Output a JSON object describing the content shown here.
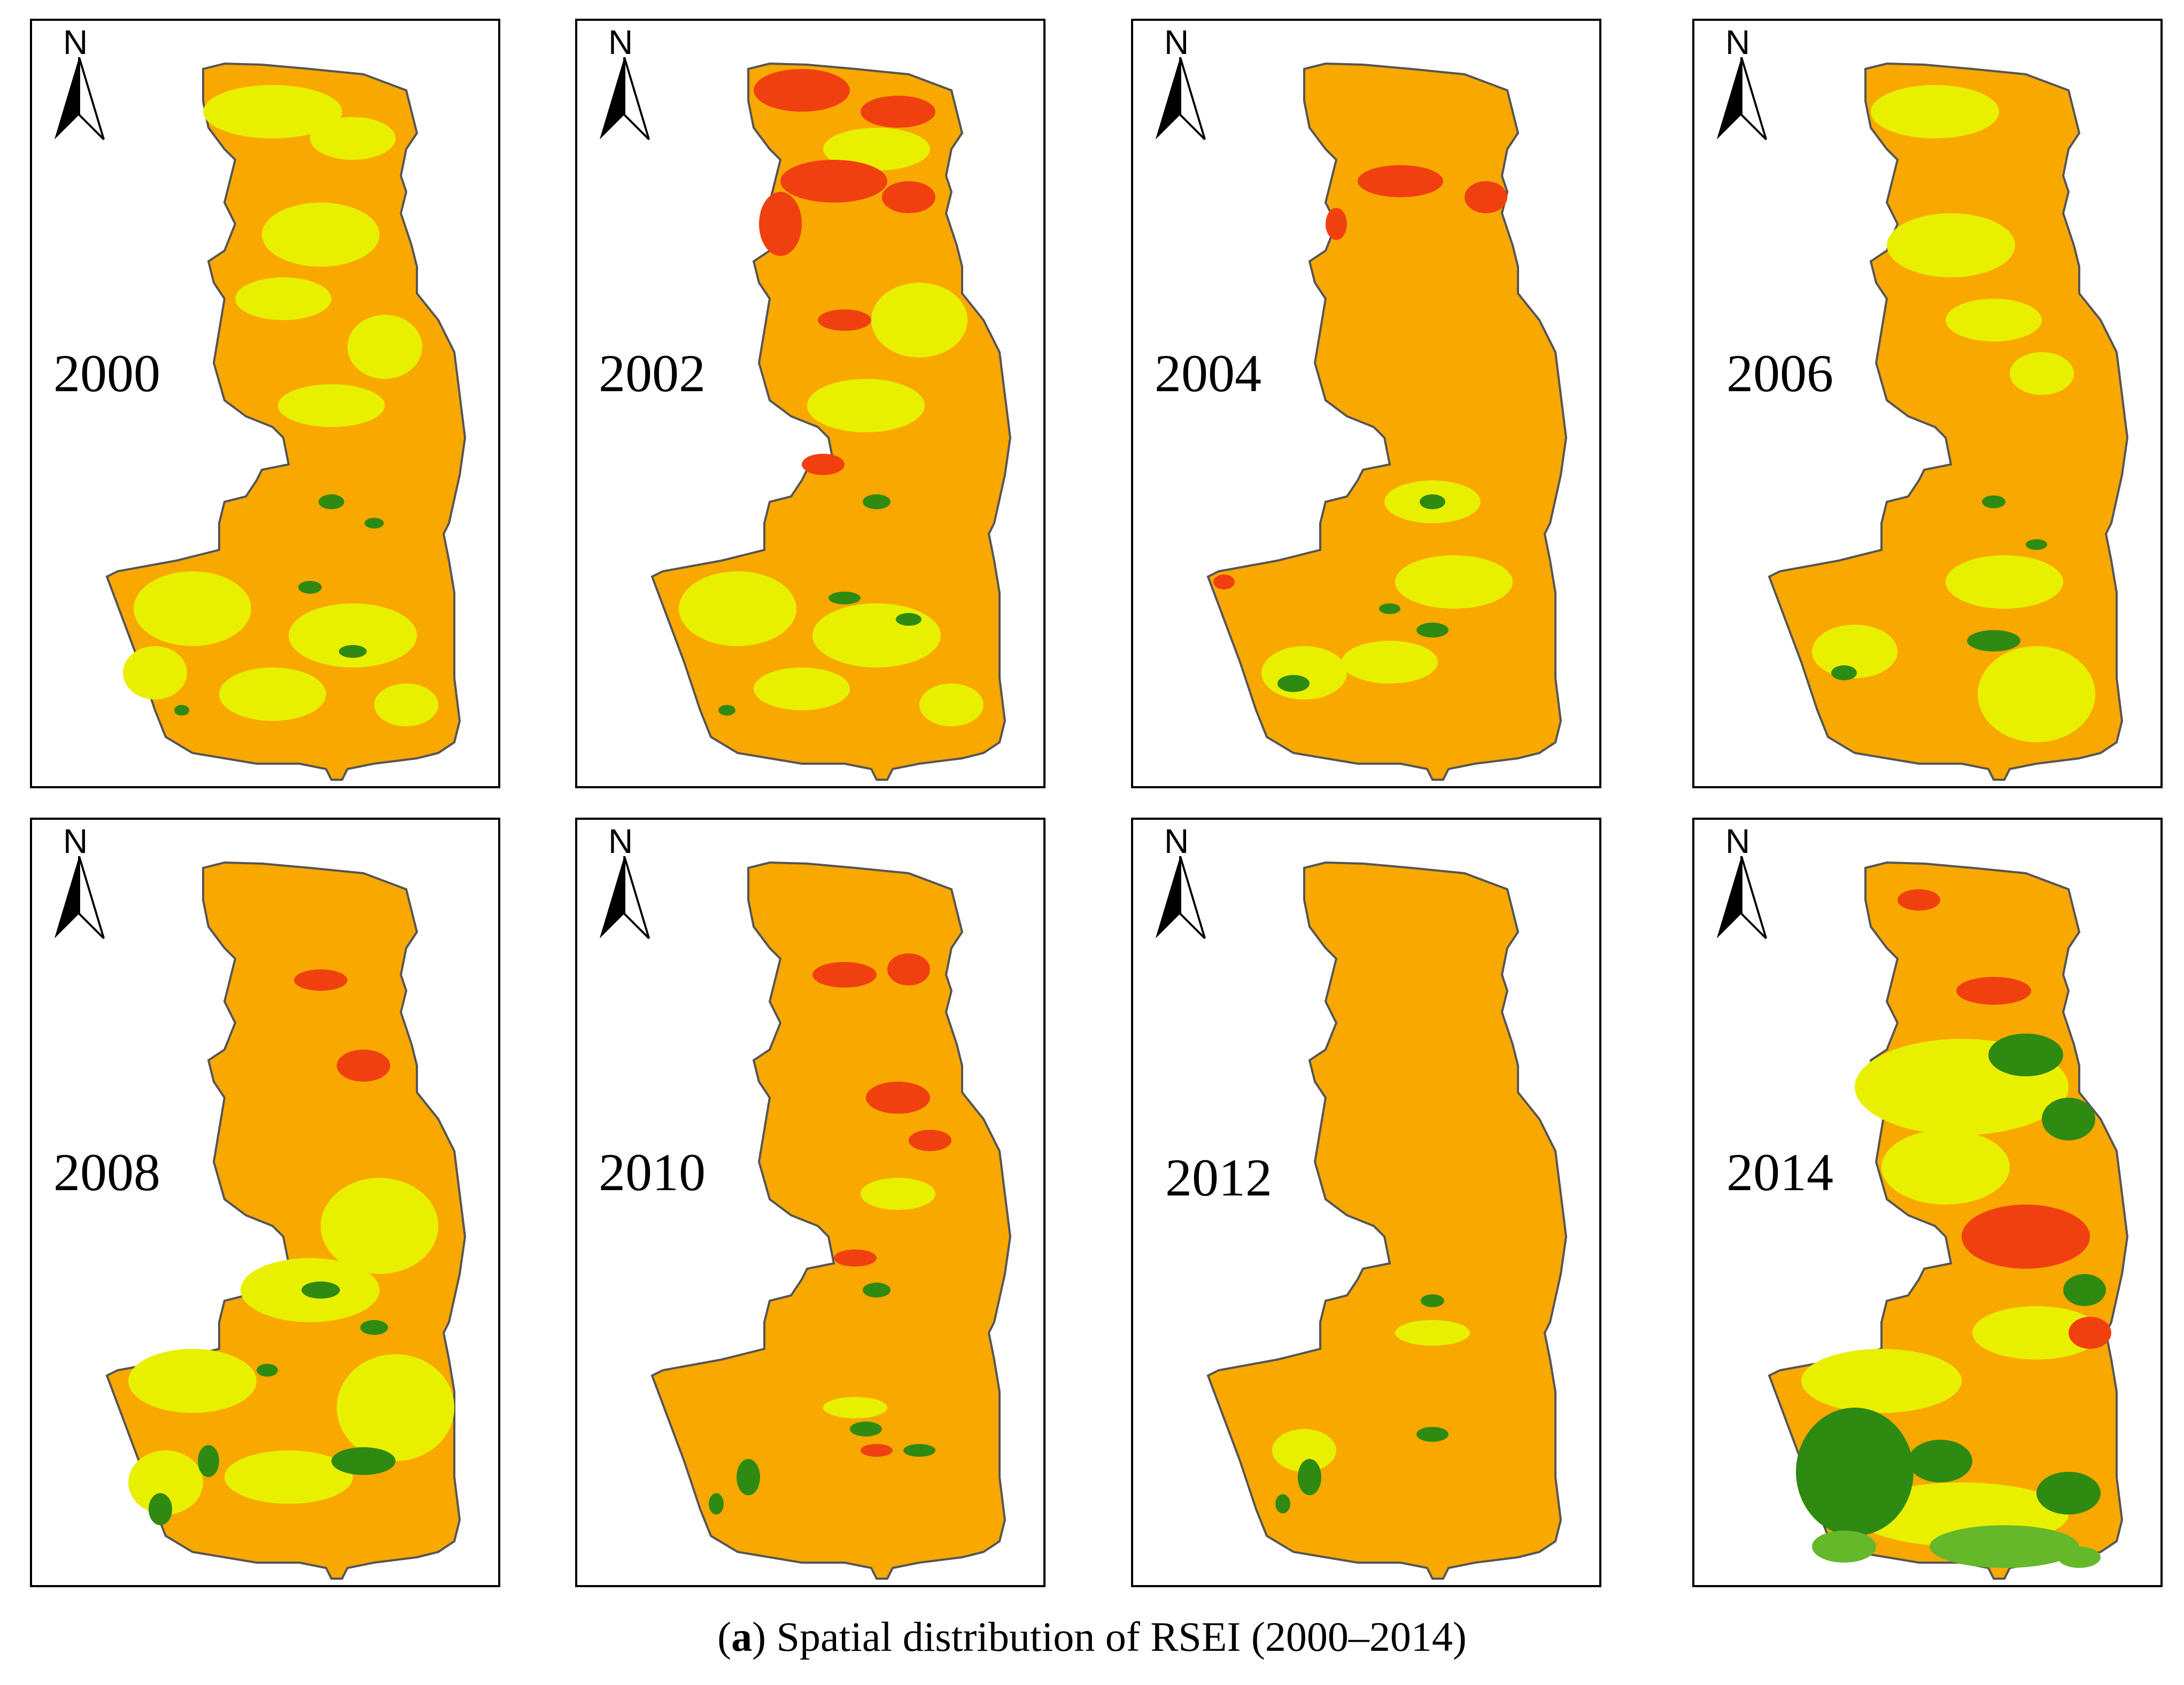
{
  "figure": {
    "caption_prefix": "(",
    "caption_letter": "a",
    "caption_text": ") Spatial distribution of RSEI (2000–2014)"
  },
  "north_label": "N",
  "colors": {
    "base": "#F9A800",
    "light": "#E8F000",
    "poor": "#F04010",
    "good": "#2E8A10",
    "excellent": "#65B82A"
  },
  "panels": [
    {
      "year": "2000",
      "dominant": "orange-yellow mix"
    },
    {
      "year": "2002",
      "dominant": "orange with red north"
    },
    {
      "year": "2004",
      "dominant": "orange"
    },
    {
      "year": "2006",
      "dominant": "orange-yellow mix"
    },
    {
      "year": "2008",
      "dominant": "orange with yellow south"
    },
    {
      "year": "2010",
      "dominant": "orange with red patches"
    },
    {
      "year": "2012",
      "dominant": "orange"
    },
    {
      "year": "2014",
      "dominant": "mixed with green southwest"
    }
  ]
}
